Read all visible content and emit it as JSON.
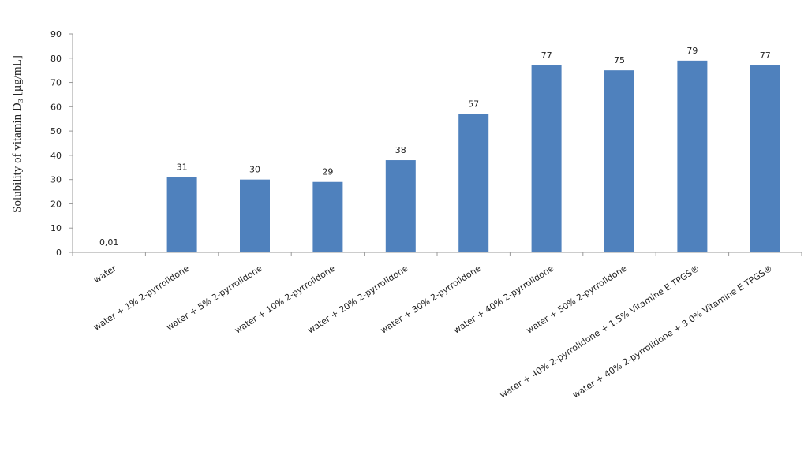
{
  "chart_data": {
    "type": "bar",
    "y_label": "Solubility of vitamin D₃ [µg/mL]",
    "categories": [
      "water",
      "water + 1% 2-pyrrolidone",
      "water + 5% 2-pyrrolidone",
      "water + 10% 2-pyrrolidone",
      "water + 20% 2-pyrrolidone",
      "water + 30% 2-pyrrolidone",
      "water + 40% 2-pyrrolidone",
      "water + 50% 2-pyrrolidone",
      "water + 40% 2-pyrrolidone + 1.5% Vitamine E TPGS®",
      "water + 40% 2-pyrrolidone + 3.0% Vitamine E TPGS®"
    ],
    "values": [
      0.01,
      31,
      30,
      29,
      38,
      57,
      77,
      75,
      79,
      77
    ],
    "value_labels": [
      "0,01",
      "31",
      "30",
      "29",
      "38",
      "57",
      "77",
      "75",
      "79",
      "77"
    ],
    "color": "#4f81bd",
    "ylim": [
      0,
      90
    ],
    "yticks": [
      0,
      10,
      20,
      30,
      40,
      50,
      60,
      70,
      80,
      90
    ],
    "grid": false
  }
}
